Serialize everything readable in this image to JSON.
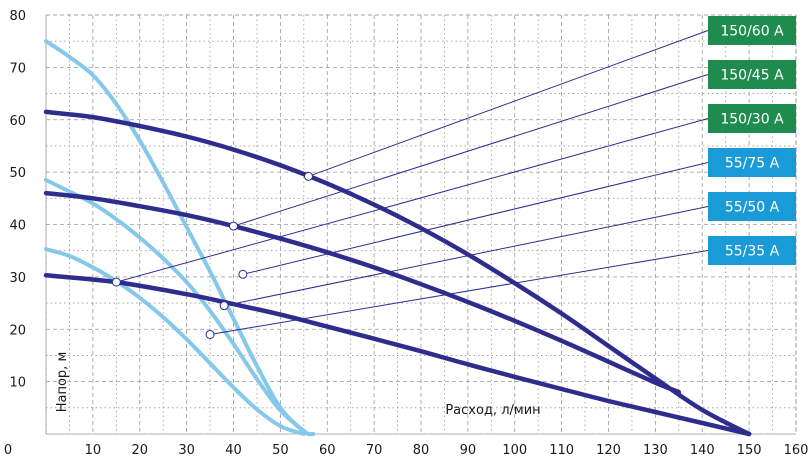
{
  "chart_data": {
    "type": "line",
    "xlabel": "Расход, л/мин",
    "ylabel": "Напор, м",
    "xlim": [
      0,
      160
    ],
    "ylim": [
      0,
      80
    ],
    "xticks": [
      "0",
      "10",
      "20",
      "30",
      "40",
      "50",
      "60",
      "70",
      "80",
      "90",
      "100",
      "110",
      "120",
      "130",
      "140",
      "150",
      "160"
    ],
    "yticks": [
      "10",
      "20",
      "30",
      "40",
      "50",
      "60",
      "70",
      "80"
    ],
    "grid": true,
    "colors": {
      "model_150": "#2e2d8e",
      "model_55": "#86c8ea",
      "label_150": "#1e8c4e",
      "label_55": "#1a9bd7",
      "leader": "#2e2d8e",
      "grid": "#9a9a9a"
    },
    "series": [
      {
        "name": "150/60 A",
        "group": "150",
        "x": [
          0,
          10,
          20,
          30,
          40,
          50,
          60,
          70,
          80,
          90,
          100,
          110,
          120,
          130,
          140,
          150
        ],
        "y": [
          61.5,
          60.5,
          58.8,
          56.8,
          54.3,
          51.3,
          47.8,
          43.8,
          39.3,
          34.3,
          28.8,
          23.0,
          16.8,
          10.6,
          4.6,
          0
        ],
        "marker_point": [
          56,
          49.2
        ]
      },
      {
        "name": "150/45 A",
        "group": "150",
        "x": [
          0,
          10,
          20,
          30,
          40,
          50,
          60,
          70,
          80,
          90,
          100,
          110,
          120,
          130,
          135
        ],
        "y": [
          46.0,
          45.0,
          43.5,
          41.8,
          39.7,
          37.3,
          34.7,
          31.8,
          28.6,
          25.2,
          21.6,
          17.8,
          13.8,
          9.8,
          8.0
        ],
        "marker_point": [
          40,
          39.7
        ]
      },
      {
        "name": "150/30 A",
        "group": "150",
        "x": [
          0,
          15,
          30,
          40,
          50,
          60,
          70,
          80,
          90,
          100,
          110,
          120,
          130,
          140,
          150
        ],
        "y": [
          30.3,
          29.0,
          26.7,
          24.8,
          22.8,
          20.5,
          18.2,
          15.8,
          13.3,
          10.9,
          8.6,
          6.3,
          4.2,
          2.1,
          0
        ],
        "marker_point": [
          15,
          29.0
        ]
      },
      {
        "name": "55/75 A",
        "group": "55",
        "x": [
          0,
          5,
          10,
          15,
          20,
          25,
          30,
          35,
          40,
          45,
          50,
          55,
          57
        ],
        "y": [
          75,
          72,
          68.5,
          63,
          56,
          48,
          39.5,
          31,
          22,
          13,
          5,
          0.5,
          0
        ],
        "marker_point": [
          42,
          30.5
        ]
      },
      {
        "name": "55/50 A",
        "group": "55",
        "x": [
          0,
          5,
          10,
          15,
          20,
          25,
          30,
          35,
          40,
          45,
          50,
          55,
          56
        ],
        "y": [
          48.5,
          46.3,
          44.0,
          41.0,
          37.5,
          33.5,
          29.0,
          23.5,
          17.2,
          10.5,
          4.5,
          0.6,
          0
        ],
        "marker_point": [
          38,
          24.5
        ]
      },
      {
        "name": "55/35 A",
        "group": "55",
        "x": [
          0,
          5,
          10,
          15,
          20,
          25,
          30,
          35,
          40,
          45,
          50,
          55
        ],
        "y": [
          35.3,
          34.0,
          31.8,
          29.2,
          26.0,
          22.3,
          18.1,
          13.5,
          8.9,
          4.7,
          1.5,
          0
        ],
        "marker_point": [
          35,
          19.0
        ]
      }
    ],
    "legend_labels": [
      {
        "text": "150/60 A",
        "group": "150"
      },
      {
        "text": "150/45 A",
        "group": "150"
      },
      {
        "text": "150/30 A",
        "group": "150"
      },
      {
        "text": "55/75 A",
        "group": "55"
      },
      {
        "text": "55/50 A",
        "group": "55"
      },
      {
        "text": "55/35 A",
        "group": "55"
      }
    ],
    "legend_placement": "right, stacked labels with leader lines"
  }
}
